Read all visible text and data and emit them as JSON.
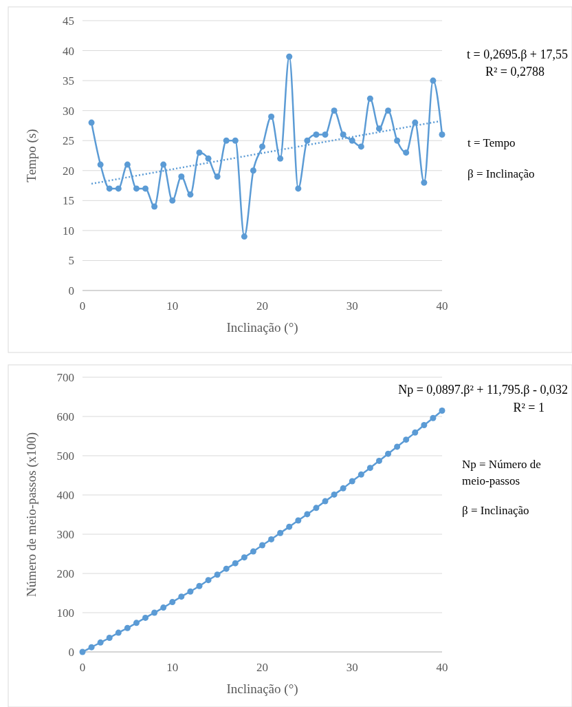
{
  "chart_data": [
    {
      "type": "line",
      "xlabel": "Inclinação (°)",
      "ylabel": "Tempo (s)",
      "xlim": [
        0,
        40
      ],
      "xticks": [
        0,
        10,
        20,
        30,
        40
      ],
      "ylim": [
        0,
        45
      ],
      "yticks": [
        0,
        5,
        10,
        15,
        20,
        25,
        30,
        35,
        40,
        45
      ],
      "grid": "y",
      "annotations": [
        "t = 0,2695.β + 17,55",
        "R² = 0,2788",
        "t = Tempo",
        "β = Inclinação"
      ],
      "series": [
        {
          "color": "#5b9bd5",
          "marker": "circle",
          "line_style": "solid",
          "x": [
            1,
            2,
            3,
            4,
            5,
            6,
            7,
            8,
            9,
            10,
            11,
            12,
            13,
            14,
            15,
            16,
            17,
            18,
            19,
            20,
            21,
            22,
            23,
            24,
            25,
            26,
            27,
            28,
            29,
            30,
            31,
            32,
            33,
            34,
            35,
            36,
            37,
            38,
            39,
            40
          ],
          "values": [
            28,
            21,
            17,
            17,
            21,
            17,
            17,
            14,
            21,
            15,
            19,
            16,
            23,
            22,
            19,
            25,
            25,
            9,
            20,
            24,
            29,
            22,
            39,
            17,
            25,
            26,
            26,
            30,
            26,
            25,
            24,
            32,
            27,
            30,
            25,
            23,
            28,
            18,
            35,
            26
          ]
        },
        {
          "type": "line",
          "color": "#5b9bd5",
          "marker": "none",
          "line_style": "dotted",
          "x": [
            1,
            40
          ],
          "values": [
            17.8,
            28.3
          ]
        }
      ]
    },
    {
      "type": "line",
      "xlabel": "Inclinação (°)",
      "ylabel": "Número de meio-passos (x100)",
      "xlim": [
        0,
        40
      ],
      "xticks": [
        0,
        10,
        20,
        30,
        40
      ],
      "ylim": [
        0,
        700
      ],
      "yticks": [
        0,
        100,
        200,
        300,
        400,
        500,
        600,
        700
      ],
      "grid": "y",
      "annotations": [
        "Np = 0,0897.β² + 11,795.β - 0,032",
        "R² = 1",
        "Np = Número de meio-passos",
        "β = Inclinação"
      ],
      "series": [
        {
          "color": "#5b9bd5",
          "marker": "circle",
          "line_style": "solid",
          "x": [
            0,
            1,
            2,
            3,
            4,
            5,
            6,
            7,
            8,
            9,
            10,
            11,
            12,
            13,
            14,
            15,
            16,
            17,
            18,
            19,
            20,
            21,
            22,
            23,
            24,
            25,
            26,
            27,
            28,
            29,
            30,
            31,
            32,
            33,
            34,
            35,
            36,
            37,
            38,
            39,
            40
          ],
          "values": [
            0,
            12,
            24,
            36,
            49,
            61,
            74,
            87,
            100,
            113,
            127,
            141,
            154,
            168,
            183,
            197,
            212,
            226,
            241,
            256,
            272,
            287,
            303,
            319,
            335,
            351,
            367,
            384,
            401,
            417,
            435,
            452,
            469,
            487,
            505,
            523,
            541,
            559,
            578,
            596,
            615
          ]
        }
      ]
    }
  ]
}
